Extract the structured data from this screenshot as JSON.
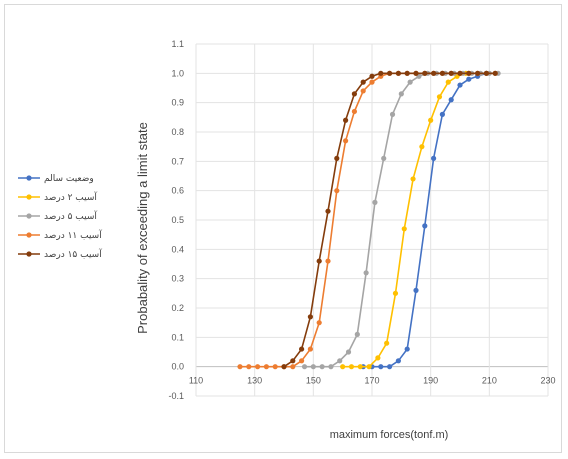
{
  "chart_data": {
    "type": "line",
    "title": "",
    "xlabel": "maximum forces(tonf.m)",
    "ylabel": "Probabality of exceeding a limit state",
    "xlim": [
      110,
      230
    ],
    "ylim": [
      -0.1,
      1.1
    ],
    "xticks": [
      "110",
      "130",
      "150",
      "170",
      "190",
      "210",
      "230"
    ],
    "yticks": [
      "-0.1",
      "0.0",
      "0.1",
      "0.2",
      "0.3",
      "0.4",
      "0.5",
      "0.6",
      "0.7",
      "0.8",
      "0.9",
      "1.0",
      "1.1"
    ],
    "grid": true,
    "legend_position": "left",
    "series": [
      {
        "name": "وضعیت سالم",
        "color": "#4472C4",
        "x": [
          167,
          170,
          173,
          176,
          179,
          182,
          185,
          188,
          191,
          194,
          197,
          200,
          203,
          206,
          209
        ],
        "y": [
          0.0,
          0.0,
          0.0,
          0.0,
          0.02,
          0.06,
          0.26,
          0.48,
          0.71,
          0.86,
          0.91,
          0.96,
          0.98,
          0.99,
          1.0
        ]
      },
      {
        "name": "آسیب ۲ درصد",
        "color": "#FFC000",
        "x": [
          160,
          163,
          166,
          169,
          172,
          175,
          178,
          181,
          184,
          187,
          190,
          193,
          196,
          199,
          202
        ],
        "y": [
          0.0,
          0.0,
          0.0,
          0.0,
          0.03,
          0.08,
          0.25,
          0.47,
          0.64,
          0.75,
          0.84,
          0.92,
          0.97,
          0.99,
          1.0
        ]
      },
      {
        "name": "آسیب ۵ درصد",
        "color": "#A5A5A5",
        "x": [
          147,
          150,
          153,
          156,
          159,
          162,
          165,
          168,
          171,
          174,
          177,
          180,
          183,
          186,
          189,
          192,
          195,
          198,
          201,
          204,
          207,
          210,
          213
        ],
        "y": [
          0.0,
          0.0,
          0.0,
          0.0,
          0.02,
          0.05,
          0.11,
          0.32,
          0.56,
          0.71,
          0.86,
          0.93,
          0.97,
          0.99,
          1.0,
          1.0,
          1.0,
          1.0,
          1.0,
          1.0,
          1.0,
          1.0,
          1.0
        ]
      },
      {
        "name": "آسیب ۱۱ درصد",
        "color": "#ED7D31",
        "x": [
          125,
          128,
          131,
          134,
          137,
          140,
          143,
          146,
          149,
          152,
          155,
          158,
          161,
          164,
          167,
          170,
          173,
          176,
          179,
          182,
          185,
          188,
          191,
          194,
          197,
          200,
          203,
          206,
          209,
          212
        ],
        "y": [
          0.0,
          0.0,
          0.0,
          0.0,
          0.0,
          0.0,
          0.0,
          0.02,
          0.06,
          0.15,
          0.36,
          0.6,
          0.77,
          0.87,
          0.94,
          0.97,
          0.99,
          1.0,
          1.0,
          1.0,
          1.0,
          1.0,
          1.0,
          1.0,
          1.0,
          1.0,
          1.0,
          1.0,
          1.0,
          1.0
        ]
      },
      {
        "name": "آسیب ۱۵ درصد",
        "color": "#843C0C",
        "x": [
          140,
          143,
          146,
          149,
          152,
          155,
          158,
          161,
          164,
          167,
          170,
          173,
          176,
          179,
          182,
          185,
          188,
          191,
          194,
          197,
          200,
          203,
          206,
          209,
          212
        ],
        "y": [
          0.0,
          0.02,
          0.06,
          0.17,
          0.36,
          0.53,
          0.71,
          0.84,
          0.93,
          0.97,
          0.99,
          1.0,
          1.0,
          1.0,
          1.0,
          1.0,
          1.0,
          1.0,
          1.0,
          1.0,
          1.0,
          1.0,
          1.0,
          1.0,
          1.0
        ]
      }
    ]
  }
}
